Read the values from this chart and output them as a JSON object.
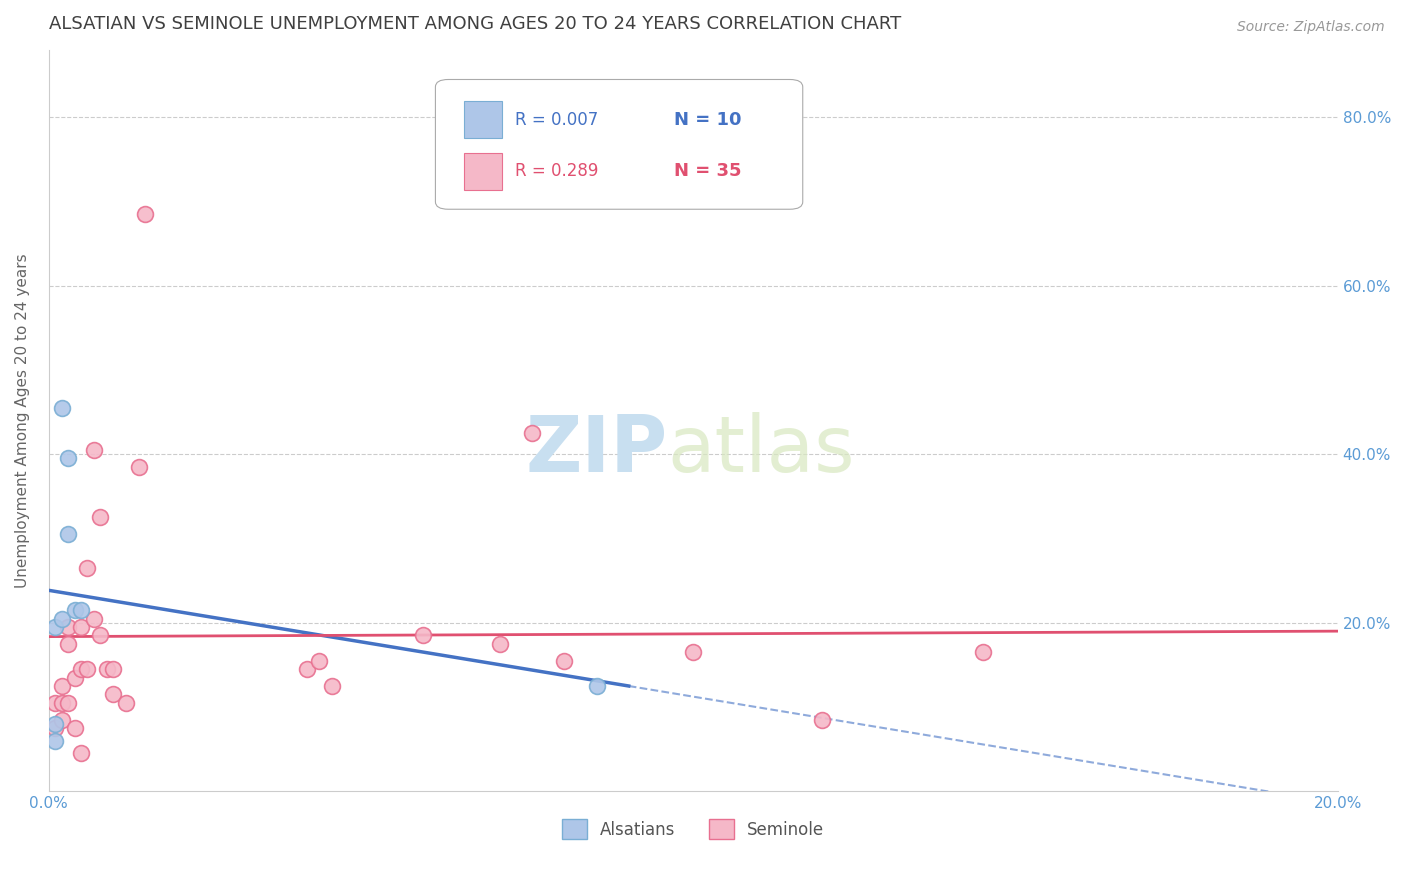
{
  "title": "ALSATIAN VS SEMINOLE UNEMPLOYMENT AMONG AGES 20 TO 24 YEARS CORRELATION CHART",
  "source": "Source: ZipAtlas.com",
  "ylabel": "Unemployment Among Ages 20 to 24 years",
  "xlim": [
    0.0,
    0.2
  ],
  "ylim": [
    0.0,
    0.88
  ],
  "yticks": [
    0.0,
    0.2,
    0.4,
    0.6,
    0.8
  ],
  "ytick_labels": [
    "",
    "20.0%",
    "40.0%",
    "60.0%",
    "80.0%"
  ],
  "xticks": [
    0.0,
    0.04,
    0.08,
    0.12,
    0.16,
    0.2
  ],
  "xtick_labels": [
    "0.0%",
    "",
    "",
    "",
    "",
    "20.0%"
  ],
  "legend_r_alsatian": "R = 0.007",
  "legend_n_alsatian": "N = 10",
  "legend_r_seminole": "R = 0.289",
  "legend_n_seminole": "N = 35",
  "alsatian_color": "#aec6e8",
  "seminole_color": "#f5b8c8",
  "alsatian_edge_color": "#7aaed4",
  "seminole_edge_color": "#e87090",
  "trendline_alsatian_color": "#4472c4",
  "trendline_seminole_color": "#e05070",
  "grid_color": "#cccccc",
  "axis_color": "#5b9bd5",
  "title_color": "#404040",
  "watermark_color": "#daeaf8",
  "alsatian_x": [
    0.001,
    0.002,
    0.002,
    0.003,
    0.003,
    0.004,
    0.005,
    0.001,
    0.001,
    0.085
  ],
  "alsatian_y": [
    0.195,
    0.205,
    0.455,
    0.395,
    0.305,
    0.215,
    0.215,
    0.08,
    0.06,
    0.125
  ],
  "seminole_x": [
    0.001,
    0.001,
    0.002,
    0.002,
    0.002,
    0.003,
    0.003,
    0.003,
    0.004,
    0.004,
    0.005,
    0.005,
    0.005,
    0.006,
    0.006,
    0.007,
    0.007,
    0.008,
    0.008,
    0.009,
    0.01,
    0.01,
    0.012,
    0.014,
    0.015,
    0.04,
    0.042,
    0.044,
    0.058,
    0.07,
    0.075,
    0.08,
    0.1,
    0.12,
    0.145
  ],
  "seminole_y": [
    0.105,
    0.075,
    0.105,
    0.125,
    0.085,
    0.195,
    0.175,
    0.105,
    0.135,
    0.075,
    0.195,
    0.145,
    0.045,
    0.145,
    0.265,
    0.205,
    0.405,
    0.185,
    0.325,
    0.145,
    0.115,
    0.145,
    0.105,
    0.385,
    0.685,
    0.145,
    0.155,
    0.125,
    0.185,
    0.175,
    0.425,
    0.155,
    0.165,
    0.085,
    0.165
  ],
  "marker_size": 130,
  "background_color": "#ffffff",
  "alsatian_trendline_x": [
    0.0,
    0.2
  ],
  "alsatian_trendline_solid_end": 0.09,
  "seminole_trendline_x": [
    0.0,
    0.2
  ]
}
